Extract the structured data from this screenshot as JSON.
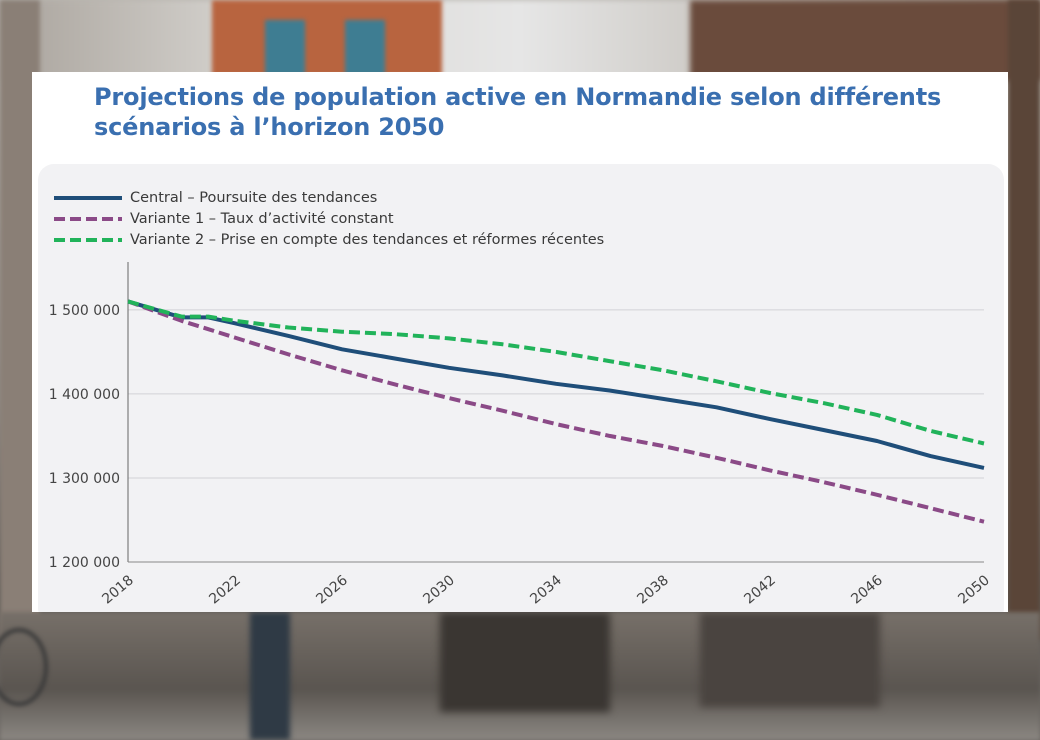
{
  "chart_data": {
    "type": "line",
    "title": "Projections de population active en Normandie selon différents scénarios à l’horizon 2050",
    "xlabel": "",
    "ylabel": "",
    "x_ticks": [
      "2018",
      "2022",
      "2026",
      "2030",
      "2034",
      "2038",
      "2042",
      "2046",
      "2050"
    ],
    "y_ticks": [
      "1 200 000",
      "1 300 000",
      "1 400 000",
      "1 500 000"
    ],
    "xlim": [
      2018,
      2050
    ],
    "ylim": [
      1200000,
      1545000
    ],
    "grid": "horizontal",
    "legend_position": "top-left",
    "x": [
      2018,
      2020,
      2021,
      2022,
      2024,
      2026,
      2028,
      2030,
      2032,
      2034,
      2036,
      2038,
      2040,
      2042,
      2044,
      2046,
      2048,
      2050
    ],
    "series": [
      {
        "name": "Central – Poursuite des tendances",
        "color": "#1f4e79",
        "dash": "solid",
        "values": [
          1510000,
          1491000,
          1491000,
          1484000,
          1469000,
          1453000,
          1442000,
          1431000,
          1422000,
          1412000,
          1404000,
          1394000,
          1384000,
          1370000,
          1357000,
          1344000,
          1326000,
          1312000
        ]
      },
      {
        "name": "Variante 1 – Taux d’activité constant",
        "color": "#8b4a87",
        "dash": "dashed",
        "values": [
          1510000,
          1487000,
          1477000,
          1467000,
          1447000,
          1428000,
          1411000,
          1395000,
          1380000,
          1364000,
          1350000,
          1338000,
          1324000,
          1309000,
          1295000,
          1280000,
          1264000,
          1248000
        ]
      },
      {
        "name": "Variante 2 – Prise en compte des tendances et réformes récentes",
        "color": "#21b35a",
        "dash": "dashed",
        "values": [
          1510000,
          1492000,
          1492000,
          1487000,
          1479000,
          1474000,
          1471000,
          1466000,
          1459000,
          1450000,
          1439000,
          1428000,
          1415000,
          1401000,
          1389000,
          1375000,
          1356000,
          1341000
        ]
      }
    ]
  }
}
